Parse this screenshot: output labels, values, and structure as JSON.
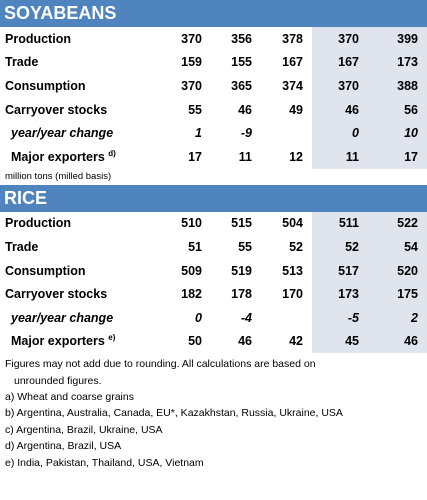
{
  "soy": {
    "title": "SOYABEANS",
    "rows": [
      {
        "label": "Production",
        "sup": "",
        "v": [
          "370",
          "356",
          "378",
          "370",
          "399"
        ]
      },
      {
        "label": "Trade",
        "sup": "",
        "v": [
          "159",
          "155",
          "167",
          "167",
          "173"
        ]
      },
      {
        "label": "Consumption",
        "sup": "",
        "v": [
          "370",
          "365",
          "374",
          "370",
          "388"
        ]
      },
      {
        "label": "Carryover stocks",
        "sup": "",
        "v": [
          "55",
          "46",
          "49",
          "46",
          "56"
        ]
      },
      {
        "label": "year/year change",
        "sup": "",
        "v": [
          "1",
          "-9",
          "",
          "0",
          "10"
        ]
      },
      {
        "label": "Major exporters",
        "sup": "d)",
        "v": [
          "17",
          "11",
          "12",
          "11",
          "17"
        ]
      }
    ]
  },
  "unit_note": "million tons (milled basis)",
  "rice": {
    "title": "RICE",
    "rows": [
      {
        "label": "Production",
        "sup": "",
        "v": [
          "510",
          "515",
          "504",
          "511",
          "522"
        ]
      },
      {
        "label": "Trade",
        "sup": "",
        "v": [
          "51",
          "55",
          "52",
          "52",
          "54"
        ]
      },
      {
        "label": "Consumption",
        "sup": "",
        "v": [
          "509",
          "519",
          "513",
          "517",
          "520"
        ]
      },
      {
        "label": "Carryover stocks",
        "sup": "",
        "v": [
          "182",
          "178",
          "170",
          "173",
          "175"
        ]
      },
      {
        "label": "year/year change",
        "sup": "",
        "v": [
          "0",
          "-4",
          "",
          "-5",
          "2"
        ]
      },
      {
        "label": "Major exporters",
        "sup": "e)",
        "v": [
          "50",
          "46",
          "42",
          "45",
          "46"
        ]
      }
    ]
  },
  "notes": {
    "rounding_1": "Figures may not add due to rounding. All calculations are based on",
    "rounding_2": "unrounded figures.",
    "a": "a) Wheat and coarse grains",
    "b": "b) Argentina, Australia, Canada, EU*, Kazakhstan, Russia, Ukraine, USA",
    "c": "c) Argentina, Brazil, Ukraine, USA",
    "d": "d) Argentina, Brazil, USA",
    "e": "e) India, Pakistan, Thailand, USA, Vietnam"
  },
  "colors": {
    "header_band": "#4f84bf",
    "forecast_shade": "#dfe4ed"
  }
}
